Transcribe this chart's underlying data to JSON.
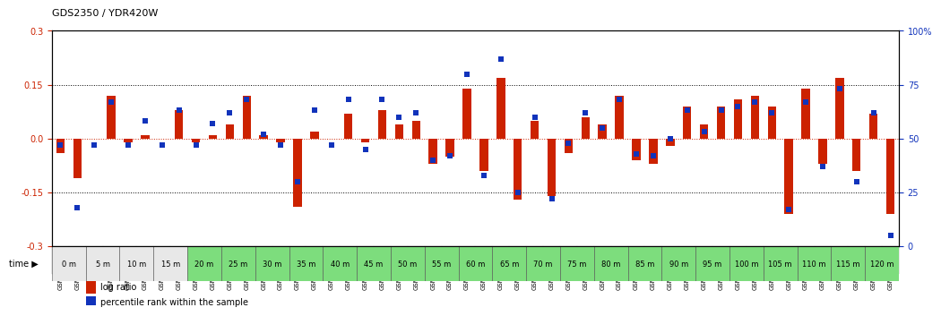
{
  "title": "GDS2350 / YDR420W",
  "gsm_labels": [
    "GSM112133",
    "GSM112158",
    "GSM112134",
    "GSM112159",
    "GSM112135",
    "GSM112160",
    "GSM112136",
    "GSM112161",
    "GSM112137",
    "GSM112162",
    "GSM112138",
    "GSM112163",
    "GSM112139",
    "GSM112164",
    "GSM112140",
    "GSM112165",
    "GSM112141",
    "GSM112166",
    "GSM112142",
    "GSM112167",
    "GSM112143",
    "GSM112168",
    "GSM112144",
    "GSM112169",
    "GSM112145",
    "GSM112170",
    "GSM112146",
    "GSM112171",
    "GSM112147",
    "GSM112172",
    "GSM112148",
    "GSM112173",
    "GSM112149",
    "GSM112174",
    "GSM112150",
    "GSM112175",
    "GSM112151",
    "GSM112176",
    "GSM112152",
    "GSM112177",
    "GSM112153",
    "GSM112178",
    "GSM112154",
    "GSM112179",
    "GSM112155",
    "GSM112180",
    "GSM112156",
    "GSM112181",
    "GSM112157",
    "GSM112182"
  ],
  "time_labels": [
    "0 m",
    "5 m",
    "10 m",
    "15 m",
    "20 m",
    "25 m",
    "30 m",
    "35 m",
    "40 m",
    "45 m",
    "50 m",
    "55 m",
    "60 m",
    "65 m",
    "70 m",
    "75 m",
    "80 m",
    "85 m",
    "90 m",
    "95 m",
    "100 m",
    "105 m",
    "110 m",
    "115 m",
    "120 m"
  ],
  "log_ratio": [
    -0.04,
    -0.11,
    0.0,
    0.12,
    -0.01,
    0.01,
    0.0,
    0.08,
    -0.01,
    0.01,
    0.04,
    0.12,
    0.01,
    -0.01,
    -0.19,
    0.02,
    0.0,
    0.07,
    -0.01,
    0.08,
    0.04,
    0.05,
    -0.07,
    -0.05,
    0.14,
    -0.09,
    0.17,
    -0.17,
    0.05,
    -0.16,
    -0.04,
    0.06,
    0.04,
    0.12,
    -0.06,
    -0.07,
    -0.02,
    0.09,
    0.04,
    0.09,
    0.11,
    0.12,
    0.09,
    -0.21,
    0.14,
    -0.07,
    0.17,
    -0.09,
    0.07,
    -0.21
  ],
  "percentile": [
    47,
    18,
    47,
    67,
    47,
    58,
    47,
    63,
    47,
    57,
    62,
    68,
    52,
    47,
    30,
    63,
    47,
    68,
    45,
    68,
    60,
    62,
    40,
    42,
    80,
    33,
    87,
    25,
    60,
    22,
    48,
    62,
    55,
    68,
    43,
    42,
    50,
    63,
    53,
    63,
    65,
    67,
    62,
    17,
    67,
    37,
    73,
    30,
    62,
    5
  ],
  "bar_color": "#cc2200",
  "dot_color": "#1133bb",
  "bg_color": "#ffffff",
  "yticks_left": [
    -0.3,
    -0.15,
    0.0,
    0.15,
    0.3
  ],
  "yticks_right": [
    0,
    25,
    50,
    75,
    100
  ],
  "ylim_left": [
    -0.3,
    0.3
  ],
  "time_bg_colors": [
    "#e8e8e8",
    "#e8e8e8",
    "#e8e8e8",
    "#e8e8e8",
    "#7ddd7d",
    "#7ddd7d",
    "#7ddd7d",
    "#7ddd7d",
    "#7ddd7d",
    "#7ddd7d",
    "#7ddd7d",
    "#7ddd7d",
    "#7ddd7d",
    "#7ddd7d",
    "#7ddd7d",
    "#7ddd7d",
    "#7ddd7d",
    "#7ddd7d",
    "#7ddd7d",
    "#7ddd7d",
    "#7ddd7d",
    "#7ddd7d",
    "#7ddd7d",
    "#7ddd7d",
    "#7ddd7d"
  ],
  "gsm_bg_color": "#d8d8d8",
  "gsm_border_color": "#888888"
}
